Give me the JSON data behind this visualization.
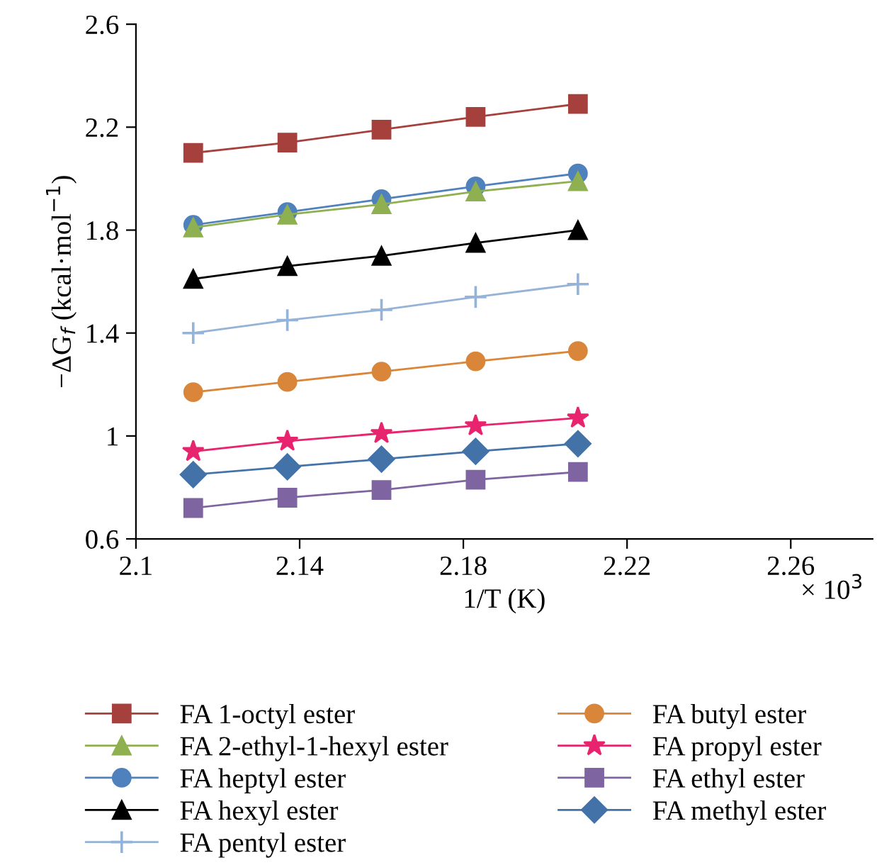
{
  "chart_data": {
    "type": "line",
    "xlabel": "1/T (K)",
    "ylabel": "−ΔG$_{f}$ (kcal·mol$^{−1}$)",
    "annotations": [
      "× 10$^{3}$"
    ],
    "x": [
      2.114,
      2.137,
      2.16,
      2.183,
      2.208
    ],
    "xlim": [
      2.1,
      2.28
    ],
    "xticks": [
      2.1,
      2.14,
      2.18,
      2.22,
      2.26
    ],
    "ylim": [
      0.6,
      2.6
    ],
    "yticks": [
      0.6,
      1,
      1.4,
      1.8,
      2.2,
      2.6
    ],
    "grid": false,
    "legend": "bottom",
    "line_style": "solid",
    "series": [
      {
        "name": "FA 1-octyl ester",
        "color": "#a5403d",
        "marker": "square",
        "values": [
          2.1,
          2.14,
          2.19,
          2.24,
          2.29
        ]
      },
      {
        "name": "FA 2-ethyl-1-hexyl ester",
        "color": "#8eb050",
        "marker": "triangle",
        "values": [
          1.81,
          1.86,
          1.9,
          1.95,
          1.99
        ]
      },
      {
        "name": "FA heptyl ester",
        "color": "#4f81bd",
        "marker": "circle",
        "values": [
          1.82,
          1.87,
          1.92,
          1.97,
          2.02
        ]
      },
      {
        "name": "FA hexyl ester",
        "color": "#000000",
        "marker": "triangle",
        "values": [
          1.61,
          1.66,
          1.7,
          1.75,
          1.8
        ]
      },
      {
        "name": "FA pentyl ester",
        "color": "#95b3d7",
        "marker": "cross",
        "values": [
          1.4,
          1.45,
          1.49,
          1.54,
          1.59
        ]
      },
      {
        "name": "FA butyl ester",
        "color": "#d9863a",
        "marker": "circle",
        "values": [
          1.17,
          1.21,
          1.25,
          1.29,
          1.33
        ]
      },
      {
        "name": "FA propyl ester",
        "color": "#e8246e",
        "marker": "star",
        "values": [
          0.94,
          0.98,
          1.01,
          1.04,
          1.07
        ]
      },
      {
        "name": "FA ethyl ester",
        "color": "#7f64a2",
        "marker": "square",
        "values": [
          0.72,
          0.76,
          0.79,
          0.83,
          0.86
        ]
      },
      {
        "name": "FA methyl ester",
        "color": "#4372a8",
        "marker": "diamond",
        "values": [
          0.85,
          0.88,
          0.91,
          0.94,
          0.97
        ]
      }
    ]
  }
}
